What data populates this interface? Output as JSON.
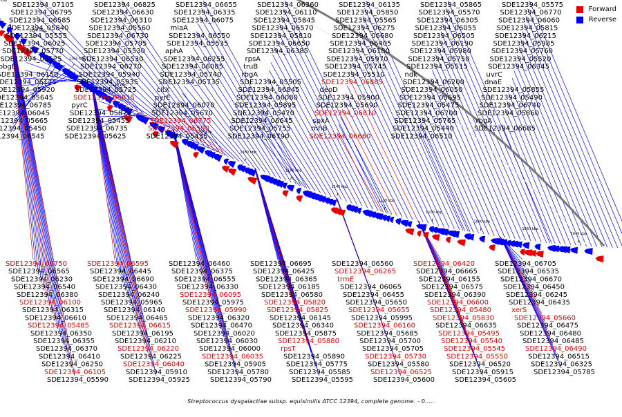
{
  "caption": "Streptococcus dysgalactiae subsp. equisimilis ATCC 12394, complete genome. - 0.....",
  "legend": [
    {
      "label": "Forward",
      "color": "#e60000"
    },
    {
      "label": "Reverse",
      "color": "#0000ff"
    }
  ],
  "colors": {
    "forward": "#e60000",
    "reverse": "#0000ff",
    "backbone": "#777777",
    "label": "#000000"
  },
  "kbp_ticks": [
    "1360 kbp",
    "1340 kbp",
    "1320 kbp",
    "1300 kbp",
    "1280 kbp",
    "1260 kbp",
    "1240 kbp",
    "1220 kbp",
    "1200 kbp",
    "1180 kbp",
    "1160 kbp",
    "1140 kbp",
    "1120 kbp",
    "1100 kbp",
    "1080 kbp",
    "1060 kbp",
    "1040 kbp"
  ],
  "labels": [
    {
      "text": "SDE12394_07105",
      "strand": "reverse"
    },
    {
      "text": "SDE12394_06825",
      "strand": "reverse"
    },
    {
      "text": "SDE12394_06655",
      "strand": "reverse"
    },
    {
      "text": "SDE12394_06360",
      "strand": "reverse"
    },
    {
      "text": "SDE12394_06135",
      "strand": "reverse"
    },
    {
      "text": "SDE12394_05865",
      "strand": "reverse"
    },
    {
      "text": "SDE12394_05575",
      "strand": "reverse"
    },
    {
      "text": "SDE12394_06795",
      "strand": "reverse"
    },
    {
      "text": "SDE12394_06630",
      "strand": "reverse"
    },
    {
      "text": "SDE12394_06335",
      "strand": "reverse"
    },
    {
      "text": "SDE12394_06110",
      "strand": "reverse"
    },
    {
      "text": "SDE12394_05850",
      "strand": "reverse"
    },
    {
      "text": "SDE12394_05570",
      "strand": "reverse"
    },
    {
      "text": "SDE12394_06770",
      "strand": "reverse"
    },
    {
      "text": "SDE12394_06585",
      "strand": "reverse"
    },
    {
      "text": "SDE12394_06310",
      "strand": "reverse"
    },
    {
      "text": "SDE12394_06075",
      "strand": "reverse"
    },
    {
      "text": "SDE12394_05845",
      "strand": "reverse"
    },
    {
      "text": "SDE12394_05565",
      "strand": "reverse"
    },
    {
      "text": "SDE12394_06305",
      "strand": "reverse"
    },
    {
      "text": "SDE12394_06060",
      "strand": "reverse"
    },
    {
      "text": "SDE12394_05840",
      "strand": "reverse"
    },
    {
      "text": "SDE12394_05560",
      "strand": "reverse"
    },
    {
      "text": "miaA",
      "strand": "reverse"
    },
    {
      "text": "SDE12394_06570",
      "strand": "reverse"
    },
    {
      "text": "SDE12394_06275",
      "strand": "reverse"
    },
    {
      "text": "SDE12394_06055",
      "strand": "reverse"
    },
    {
      "text": "SDE12394_05815",
      "strand": "reverse"
    },
    {
      "text": "SDE12394_05555",
      "strand": "reverse"
    },
    {
      "text": "SDE12394_06730",
      "strand": "reverse"
    },
    {
      "text": "SDE12394_06550",
      "strand": "reverse"
    },
    {
      "text": "SDE12394_05810",
      "strand": "reverse"
    },
    {
      "text": "SDE12394_06680",
      "strand": "reverse"
    },
    {
      "text": "SDE12394_06505",
      "strand": "reverse"
    },
    {
      "text": "SDE12394_06215",
      "strand": "reverse"
    },
    {
      "text": "SDE12394_06025",
      "strand": "reverse"
    },
    {
      "text": "SDE12394_05795",
      "strand": "reverse"
    },
    {
      "text": "SDE12394_05535",
      "strand": "reverse"
    },
    {
      "text": "SDE12394_06650",
      "strand": "reverse"
    },
    {
      "text": "SDE12394_06405",
      "strand": "reverse"
    },
    {
      "text": "SDE12394_06190",
      "strand": "reverse"
    },
    {
      "text": "SDE12394_05985",
      "strand": "reverse"
    },
    {
      "text": "SDE12394_05770",
      "strand": "reverse"
    },
    {
      "text": "SDE12394_05530",
      "strand": "reverse"
    },
    {
      "text": "aphA",
      "strand": "reverse"
    },
    {
      "text": "SDE12394_06385",
      "strand": "reverse"
    },
    {
      "text": "SDE12394_06180",
      "strand": "reverse"
    },
    {
      "text": "SDE12394_05980",
      "strand": "reverse"
    },
    {
      "text": "SDE12394_05760",
      "strand": "reverse"
    },
    {
      "text": "SDE12394_05525",
      "strand": "reverse"
    },
    {
      "text": "SDE12394_06530",
      "strand": "reverse"
    },
    {
      "text": "SDE12394_06255",
      "strand": "reverse"
    },
    {
      "text": "rpsA",
      "strand": "reverse"
    },
    {
      "text": "SDE12394_05970",
      "strand": "reverse"
    },
    {
      "text": "SDE12394_05750",
      "strand": "reverse"
    },
    {
      "text": "SDE12394_05520",
      "strand": "reverse"
    },
    {
      "text": "obgE",
      "strand": "reverse"
    },
    {
      "text": "SDE12394_06270",
      "strand": "reverse"
    },
    {
      "text": "SDE12394_06085",
      "strand": "reverse"
    },
    {
      "text": "truB",
      "strand": "reverse"
    },
    {
      "text": "SDE12394_05745",
      "strand": "reverse"
    },
    {
      "text": "SDE12394_05515",
      "strand": "reverse"
    },
    {
      "text": "SDE12394_06345",
      "strand": "reverse"
    },
    {
      "text": "SDE12394_06150",
      "strand": "reverse"
    },
    {
      "text": "SDE12394_05940",
      "strand": "reverse"
    },
    {
      "text": "SDE12394_05740",
      "strand": "reverse"
    },
    {
      "text": "rbgA",
      "strand": "reverse"
    },
    {
      "text": "SDE12394_05510",
      "strand": "reverse"
    },
    {
      "text": "ndk",
      "strand": "reverse"
    },
    {
      "text": "uvrC",
      "strand": "reverse"
    },
    {
      "text": "SDE12394_06125",
      "strand": "reverse"
    },
    {
      "text": "SDE12394_05935",
      "strand": "reverse"
    },
    {
      "text": "SDE12394_05735",
      "strand": "reverse"
    },
    {
      "text": "SDE12394_05505",
      "strand": "reverse"
    },
    {
      "text": "SDE12394_06885",
      "strand": "forward"
    },
    {
      "text": "SDE12394_06200",
      "strand": "reverse"
    },
    {
      "text": "dnaE",
      "strand": "reverse"
    },
    {
      "text": "SDE12394_05920",
      "strand": "reverse"
    },
    {
      "text": "SDE12394_05725",
      "strand": "reverse"
    },
    {
      "text": "citX",
      "strand": "reverse"
    },
    {
      "text": "SDE12394_06845",
      "strand": "reverse"
    },
    {
      "text": "deoD",
      "strand": "reverse"
    },
    {
      "text": "SDE12394_06050",
      "strand": "reverse"
    },
    {
      "text": "SDE12394_05855",
      "strand": "reverse"
    },
    {
      "text": "SDE12394_05645",
      "strand": "reverse"
    },
    {
      "text": "SDE12394_06815",
      "strand": "forward"
    },
    {
      "text": "pyrE",
      "strand": "reverse"
    },
    {
      "text": "SDE12394_06080",
      "strand": "reverse"
    },
    {
      "text": "SDE12394_05900",
      "strand": "reverse"
    },
    {
      "text": "SDE12394_05695",
      "strand": "reverse"
    },
    {
      "text": "SDE12394_05490",
      "strand": "reverse"
    },
    {
      "text": "SDE12394_06785",
      "strand": "reverse"
    },
    {
      "text": "pyrC",
      "strand": "reverse"
    },
    {
      "text": "SDE12394_06070",
      "strand": "reverse"
    },
    {
      "text": "SDE12394_05895",
      "strand": "reverse"
    },
    {
      "text": "SDE12394_05690",
      "strand": "reverse"
    },
    {
      "text": "SDE12394_05475",
      "strand": "reverse"
    },
    {
      "text": "SDE12394_06740",
      "strand": "reverse"
    },
    {
      "text": "SDE12394_06045",
      "strand": "reverse"
    },
    {
      "text": "SDE12394_05870",
      "strand": "reverse"
    },
    {
      "text": "SDE12394_05670",
      "strand": "reverse"
    },
    {
      "text": "SDE12394_05470",
      "strand": "reverse"
    },
    {
      "text": "SDE12394_06810",
      "strand": "forward"
    },
    {
      "text": "SDE12394_06700",
      "strand": "reverse"
    },
    {
      "text": "SDE12394_05860",
      "strand": "reverse"
    },
    {
      "text": "SDE12394_05665",
      "strand": "reverse"
    },
    {
      "text": "SDE12394_05455",
      "strand": "reverse"
    },
    {
      "text": "SDE12394_06775",
      "strand": "forward"
    },
    {
      "text": "SDE12394_06645",
      "strand": "reverse"
    },
    {
      "text": "spxA",
      "strand": "reverse"
    },
    {
      "text": "SDE12394_05765",
      "strand": "reverse"
    },
    {
      "text": "rbgA",
      "strand": "reverse"
    },
    {
      "text": "SDE12394_05450",
      "strand": "reverse"
    },
    {
      "text": "SDE12394_06735",
      "strand": "reverse"
    },
    {
      "text": "SDE12394_06590",
      "strand": "forward"
    },
    {
      "text": "SDE12394_05755",
      "strand": "reverse"
    },
    {
      "text": "rnhB",
      "strand": "reverse"
    },
    {
      "text": "SDE12394_05440",
      "strand": "reverse"
    },
    {
      "text": "SDE12394_06685",
      "strand": "reverse"
    },
    {
      "text": "SDE12394_06545",
      "strand": "reverse"
    },
    {
      "text": "SDE12394_05625",
      "strand": "reverse"
    },
    {
      "text": "SDE12394_05435",
      "strand": "reverse"
    },
    {
      "text": "SDE12394_06790",
      "strand": "reverse"
    },
    {
      "text": "SDE12394_06660",
      "strand": "forward"
    },
    {
      "text": "SDE12394_06510",
      "strand": "reverse"
    },
    {
      "text": "SDE12394_06750",
      "strand": "forward"
    },
    {
      "text": "SDE12394_06595",
      "strand": "forward"
    },
    {
      "text": "SDE12394_06460",
      "strand": "reverse"
    },
    {
      "text": "SDE12394_06695",
      "strand": "reverse"
    },
    {
      "text": "SDE12394_06560",
      "strand": "reverse"
    },
    {
      "text": "SDE12394_06420",
      "strand": "forward"
    },
    {
      "text": "SDE12394_06705",
      "strand": "reverse"
    },
    {
      "text": "SDE12394_06565",
      "strand": "reverse"
    },
    {
      "text": "SDE12394_06445",
      "strand": "reverse"
    },
    {
      "text": "SDE12394_06375",
      "strand": "reverse"
    },
    {
      "text": "SDE12394_06425",
      "strand": "reverse"
    },
    {
      "text": "SDE12394_06265",
      "strand": "forward"
    },
    {
      "text": "SDE12394_06665",
      "strand": "reverse"
    },
    {
      "text": "SDE12394_06535",
      "strand": "reverse"
    },
    {
      "text": "SDE12394_06230",
      "strand": "reverse"
    },
    {
      "text": "SDE12394_06690",
      "strand": "reverse"
    },
    {
      "text": "SDE12394_06555",
      "strand": "reverse"
    },
    {
      "text": "SDE12394_06365",
      "strand": "reverse"
    },
    {
      "text": "trmE",
      "strand": "forward"
    },
    {
      "text": "SDE12394_06155",
      "strand": "reverse"
    },
    {
      "text": "SDE12394_06670",
      "strand": "reverse"
    },
    {
      "text": "SDE12394_06540",
      "strand": "reverse"
    },
    {
      "text": "SDE12394_06430",
      "strand": "reverse"
    },
    {
      "text": "SDE12394_06330",
      "strand": "reverse"
    },
    {
      "text": "SDE12394_06185",
      "strand": "reverse"
    },
    {
      "text": "SDE12394_06065",
      "strand": "reverse"
    },
    {
      "text": "SDE12394_06575",
      "strand": "reverse"
    },
    {
      "text": "SDE12394_06450",
      "strand": "reverse"
    },
    {
      "text": "SDE12394_06380",
      "strand": "reverse"
    },
    {
      "text": "SDE12394_06240",
      "strand": "reverse"
    },
    {
      "text": "SDE12394_06095",
      "strand": "forward"
    },
    {
      "text": "SDE12394_06580",
      "strand": "reverse"
    },
    {
      "text": "SDE12394_06455",
      "strand": "reverse"
    },
    {
      "text": "SDE12394_06390",
      "strand": "reverse"
    },
    {
      "text": "SDE12394_06245",
      "strand": "reverse"
    },
    {
      "text": "SDE12394_06100",
      "strand": "forward"
    },
    {
      "text": "SDE12394_05965",
      "strand": "reverse"
    },
    {
      "text": "SDE12394_05975",
      "strand": "reverse"
    },
    {
      "text": "SDE12394_05820",
      "strand": "forward"
    },
    {
      "text": "SDE12394_05650",
      "strand": "reverse"
    },
    {
      "text": "SDE12394_06600",
      "strand": "forward"
    },
    {
      "text": "SDE12394_06435",
      "strand": "reverse"
    },
    {
      "text": "SDE12394_06315",
      "strand": "reverse"
    },
    {
      "text": "SDE12394_06140",
      "strand": "reverse"
    },
    {
      "text": "SDE12394_05990",
      "strand": "forward"
    },
    {
      "text": "SDE12394_05825",
      "strand": "forward"
    },
    {
      "text": "SDE12394_05655",
      "strand": "forward"
    },
    {
      "text": "SDE12394_05480",
      "strand": "forward"
    },
    {
      "text": "xerS",
      "strand": "forward"
    },
    {
      "text": "SDE12394_06610",
      "strand": "reverse"
    },
    {
      "text": "SDE12394_06465",
      "strand": "reverse"
    },
    {
      "text": "SDE12394_06320",
      "strand": "reverse"
    },
    {
      "text": "SDE12394_06145",
      "strand": "reverse"
    },
    {
      "text": "SDE12394_05995",
      "strand": "reverse"
    },
    {
      "text": "SDE12394_05830",
      "strand": "forward"
    },
    {
      "text": "SDE12394_05660",
      "strand": "forward"
    },
    {
      "text": "SDE12394_05485",
      "strand": "forward"
    },
    {
      "text": "SDE12394_06615",
      "strand": "forward"
    },
    {
      "text": "SDE12394_06470",
      "strand": "reverse"
    },
    {
      "text": "SDE12394_06340",
      "strand": "reverse"
    },
    {
      "text": "SDE12394_06160",
      "strand": "forward"
    },
    {
      "text": "SDE12394_06635",
      "strand": "reverse"
    },
    {
      "text": "SDE12394_06475",
      "strand": "reverse"
    },
    {
      "text": "SDE12394_06350",
      "strand": "reverse"
    },
    {
      "text": "SDE12394_06195",
      "strand": "reverse"
    },
    {
      "text": "SDE12394_06020",
      "strand": "reverse"
    },
    {
      "text": "SDE12394_05875",
      "strand": "reverse"
    },
    {
      "text": "SDE12394_05685",
      "strand": "reverse"
    },
    {
      "text": "SDE12394_05495",
      "strand": "forward"
    },
    {
      "text": "SDE12394_06480",
      "strand": "reverse"
    },
    {
      "text": "SDE12394_06355",
      "strand": "reverse"
    },
    {
      "text": "SDE12394_06210",
      "strand": "reverse"
    },
    {
      "text": "SDE12394_06030",
      "strand": "reverse"
    },
    {
      "text": "SDE12394_05880",
      "strand": "forward"
    },
    {
      "text": "SDE12394_05700",
      "strand": "reverse"
    },
    {
      "text": "SDE12394_05540",
      "strand": "forward"
    },
    {
      "text": "SDE12394_06485",
      "strand": "reverse"
    },
    {
      "text": "SDE12394_06370",
      "strand": "reverse"
    },
    {
      "text": "SDE12394_06220",
      "strand": "forward"
    },
    {
      "text": "SDE12394_06000",
      "strand": "reverse"
    },
    {
      "text": "rpsT",
      "strand": "forward"
    },
    {
      "text": "SDE12394_05705",
      "strand": "reverse"
    },
    {
      "text": "SDE12394_05545",
      "strand": "forward"
    },
    {
      "text": "SDE12394_06490",
      "strand": "forward"
    },
    {
      "text": "SDE12394_06410",
      "strand": "reverse"
    },
    {
      "text": "SDE12394_06225",
      "strand": "reverse"
    },
    {
      "text": "SDE12394_06035",
      "strand": "forward"
    },
    {
      "text": "SDE12394_05890",
      "strand": "reverse"
    },
    {
      "text": "SDE12394_05730",
      "strand": "forward"
    },
    {
      "text": "SDE12394_05550",
      "strand": "forward"
    },
    {
      "text": "SDE12394_06515",
      "strand": "reverse"
    },
    {
      "text": "SDE12394_06250",
      "strand": "reverse"
    },
    {
      "text": "SDE12394_06040",
      "strand": "forward"
    },
    {
      "text": "SDE12394_05905",
      "strand": "reverse"
    },
    {
      "text": "SDE12394_05775",
      "strand": "reverse"
    },
    {
      "text": "SDE12394_05580",
      "strand": "reverse"
    },
    {
      "text": "SDE12394_06520",
      "strand": "reverse"
    },
    {
      "text": "SDE12394_06325",
      "strand": "reverse"
    },
    {
      "text": "SDE12394_06105",
      "strand": "forward"
    },
    {
      "text": "SDE12394_05910",
      "strand": "reverse"
    },
    {
      "text": "SDE12394_05780",
      "strand": "reverse"
    },
    {
      "text": "SDE12394_05585",
      "strand": "reverse"
    },
    {
      "text": "SDE12394_06525",
      "strand": "forward"
    },
    {
      "text": "SDE12394_05915",
      "strand": "reverse"
    },
    {
      "text": "SDE12394_05785",
      "strand": "reverse"
    },
    {
      "text": "SDE12394_05590",
      "strand": "reverse"
    },
    {
      "text": "SDE12394_05925",
      "strand": "reverse"
    },
    {
      "text": "SDE12394_05790",
      "strand": "reverse"
    },
    {
      "text": "SDE12394_05595",
      "strand": "reverse"
    },
    {
      "text": "SDE12394_05600",
      "strand": "reverse"
    },
    {
      "text": "SDE12394_05605",
      "strand": "reverse"
    }
  ]
}
